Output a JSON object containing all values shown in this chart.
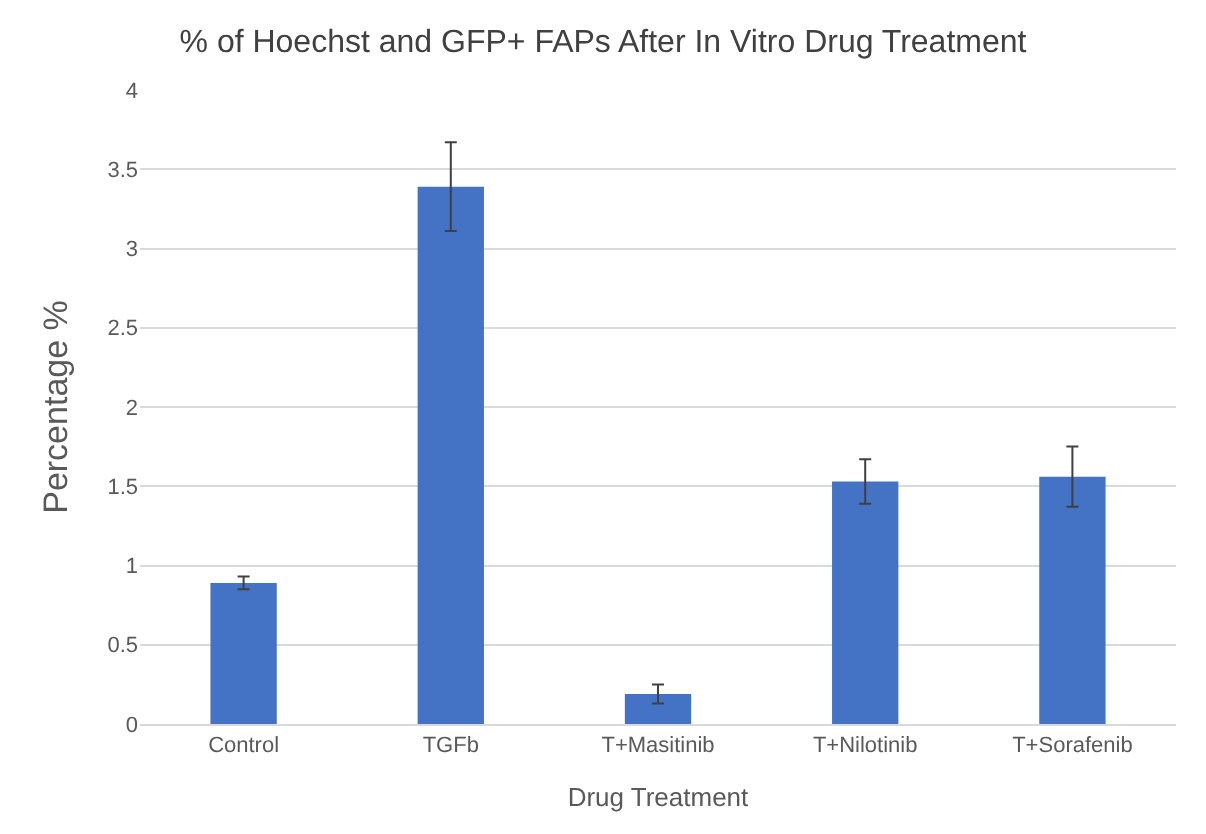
{
  "chart_data": {
    "type": "bar",
    "title": "% of Hoechst and GFP+ FAPs After In Vitro Drug Treatment",
    "xlabel": "Drug Treatment",
    "ylabel": "Percentage %",
    "categories": [
      "Control",
      "TGFb",
      "T+Masitinib",
      "T+Nilotinib",
      "T+Sorafenib"
    ],
    "values": [
      0.89,
      3.39,
      0.19,
      1.53,
      1.56
    ],
    "errors": [
      0.04,
      0.28,
      0.06,
      0.14,
      0.19
    ],
    "color": "#4472c4",
    "ylim": [
      0,
      4
    ],
    "yticks": [
      0,
      0.5,
      1,
      1.5,
      2,
      2.5,
      3,
      3.5,
      4
    ],
    "grid": "y",
    "legend": false
  }
}
